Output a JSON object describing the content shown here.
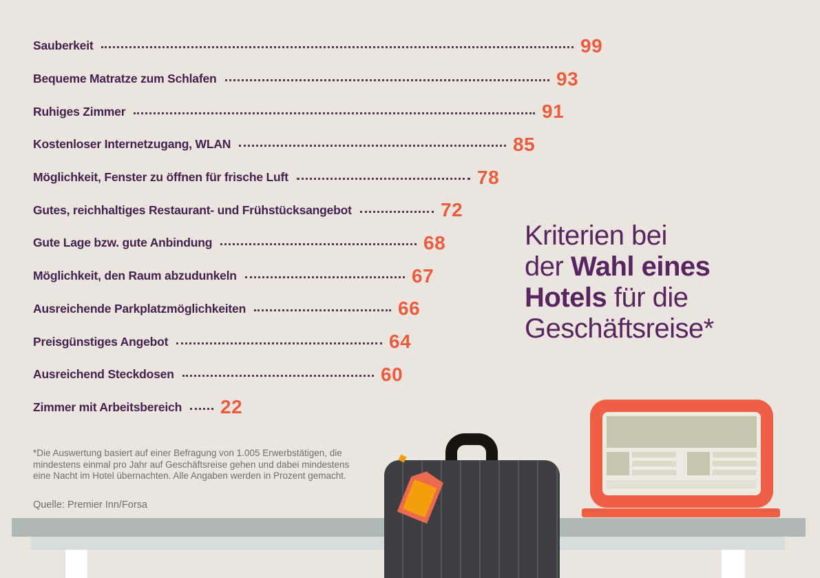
{
  "chart_data": {
    "type": "bar",
    "orientation": "horizontal",
    "unit": "percent",
    "title": "Kriterien bei der Wahl eines Hotels für die Geschäftsreise*",
    "value_range": [
      0,
      100
    ],
    "grid": false,
    "legend": false,
    "items": [
      {
        "label": "Sauberkeit",
        "value": 99,
        "track": 785
      },
      {
        "label": "Bequeme Matratze zum Schlafen",
        "value": 93,
        "track": 750
      },
      {
        "label": "Ruhiges Zimmer",
        "value": 91,
        "track": 729
      },
      {
        "label": "Kostenloser Internetzugang, WLAN",
        "value": 85,
        "track": 687
      },
      {
        "label": "Möglichkeit, Fenster zu öffnen für frische Luft",
        "value": 78,
        "track": 635
      },
      {
        "label": "Gutes, reichhaltiges Restaurant- und Frühstücksangebot",
        "value": 72,
        "track": 582
      },
      {
        "label": "Gute Lage bzw. gute Anbindung",
        "value": 68,
        "track": 557
      },
      {
        "label": "Möglichkeit, den Raum abzudunkeln",
        "value": 67,
        "track": 540
      },
      {
        "label": "Ausreichende Parkplatzmöglichkeiten",
        "value": 66,
        "track": 520
      },
      {
        "label": "Preisgünstiges Angebot",
        "value": 64,
        "track": 507
      },
      {
        "label": "Ausreichend Steckdosen",
        "value": 60,
        "track": 495
      },
      {
        "label": "Zimmer mit Arbeitsbereich",
        "value": 22,
        "track": 262
      }
    ]
  },
  "title": {
    "line1": "Kriterien bei",
    "line2_regular": "der ",
    "line2_bold": "Wahl eines",
    "line3_bold": "Hotels",
    "line3_regular": " für die",
    "line4": "Geschäftsreise*"
  },
  "footnote": "*Die Auswertung basiert auf einer Befragung von 1.005 Erwerbstätigen, die mindestens einmal pro Jahr auf Geschäftsreise gehen und dabei mindestens eine Nacht im Hotel übernachten. Alle Angaben werden in Prozent gemacht.",
  "source": "Quelle: Premier Inn/Forsa",
  "colors": {
    "background": "#eae6df",
    "label_text": "#44204d",
    "title_text": "#582560",
    "value_text": "#ea5c3d",
    "leader_dots": "#4c3c50",
    "footnote_text": "#6f6d65",
    "table": "#aeb8b4",
    "table_light": "#d7ddda",
    "laptop_frame": "#ee5f46",
    "screen": "#eeeae2",
    "screen_block": "#c6c5b0",
    "suitcase": "#3e3f43",
    "suitcase_handle": "#161311",
    "tag": "#ec6a50",
    "tag_inner": "#f49d0d"
  }
}
